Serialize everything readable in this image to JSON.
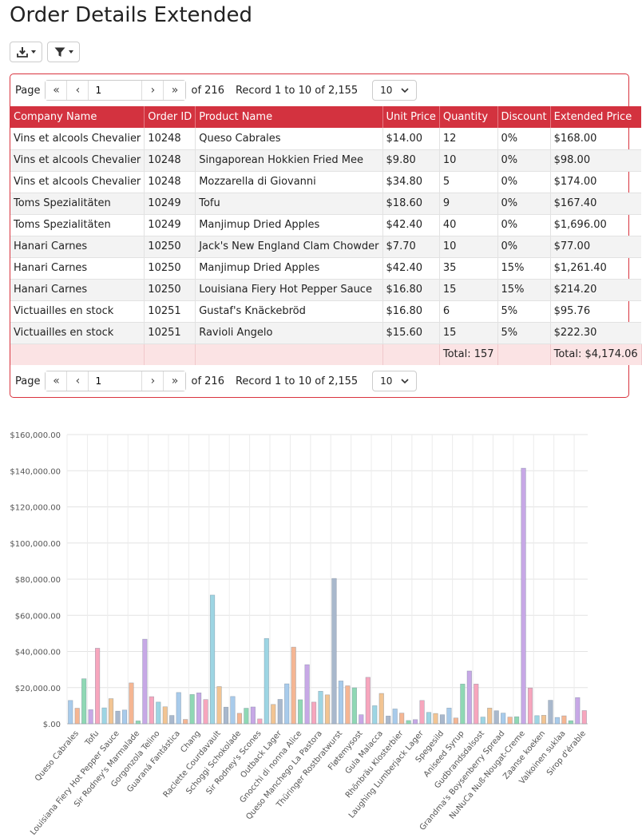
{
  "page": {
    "title": "Order Details Extended"
  },
  "toolbar": {
    "export_icon": "download-icon",
    "filter_icon": "filter-icon"
  },
  "pager": {
    "page_label": "Page",
    "current_page": "1",
    "of_text": "of 216",
    "record_text": "Record 1 to 10 of 2,155",
    "page_size": "10"
  },
  "table": {
    "columns": [
      "Company Name",
      "Order ID",
      "Product Name",
      "Unit Price",
      "Quantity",
      "Discount",
      "Extended Price"
    ],
    "rows": [
      [
        "Vins et alcools Chevalier",
        "10248",
        "Queso Cabrales",
        "$14.00",
        "12",
        "0%",
        "$168.00"
      ],
      [
        "Vins et alcools Chevalier",
        "10248",
        "Singaporean Hokkien Fried Mee",
        "$9.80",
        "10",
        "0%",
        "$98.00"
      ],
      [
        "Vins et alcools Chevalier",
        "10248",
        "Mozzarella di Giovanni",
        "$34.80",
        "5",
        "0%",
        "$174.00"
      ],
      [
        "Toms Spezialitäten",
        "10249",
        "Tofu",
        "$18.60",
        "9",
        "0%",
        "$167.40"
      ],
      [
        "Toms Spezialitäten",
        "10249",
        "Manjimup Dried Apples",
        "$42.40",
        "40",
        "0%",
        "$1,696.00"
      ],
      [
        "Hanari Carnes",
        "10250",
        "Jack's New England Clam Chowder",
        "$7.70",
        "10",
        "0%",
        "$77.00"
      ],
      [
        "Hanari Carnes",
        "10250",
        "Manjimup Dried Apples",
        "$42.40",
        "35",
        "15%",
        "$1,261.40"
      ],
      [
        "Hanari Carnes",
        "10250",
        "Louisiana Fiery Hot Pepper Sauce",
        "$16.80",
        "15",
        "15%",
        "$214.20"
      ],
      [
        "Victuailles en stock",
        "10251",
        "Gustaf's Knäckebröd",
        "$16.80",
        "6",
        "5%",
        "$95.76"
      ],
      [
        "Victuailles en stock",
        "10251",
        "Ravioli Angelo",
        "$15.60",
        "15",
        "5%",
        "$222.30"
      ]
    ],
    "totals": [
      "",
      "",
      "",
      "",
      "Total: 157",
      "",
      "Total: $4,174.06"
    ]
  },
  "chart_data": {
    "type": "bar",
    "ylim": [
      0,
      160000
    ],
    "yticks": [
      "$.00",
      "$20,000.00",
      "$40,000.00",
      "$60,000.00",
      "$80,000.00",
      "$100,000.00",
      "$120,000.00",
      "$140,000.00",
      "$160,000.00"
    ],
    "grid": true,
    "tick_labels": [
      "Queso Cabrales",
      "Tofu",
      "Louisiana Fiery Hot Pepper Sauce",
      "Sir Rodney's Marmalade",
      "Gorgonzola Telino",
      "Guaraná Fantástica",
      "Chang",
      "Raclette Courdavault",
      "Schoggi Schokolade",
      "Sir Rodney's Scones",
      "Outback Lager",
      "Gnocchi di nonna Alice",
      "Queso Manchego La Pastora",
      "Thüringer Rostbratwurst",
      "Fløtemysost",
      "Gula Malacca",
      "Rhönbräu Klosterbier",
      "Laughing Lumberjack Lager",
      "Spegesild",
      "Aniseed Syrup",
      "Gudbrandsdalsost",
      "Grandma's Boysenberry Spread",
      "NuNuCa Nuß-Nougat-Creme",
      "Zaanse koeken",
      "Valkoinen suklaa",
      "Sirop d'érable"
    ],
    "values": [
      12900,
      8600,
      24900,
      7800,
      41800,
      8800,
      13900,
      7000,
      7600,
      22600,
      1600,
      46800,
      15000,
      12000,
      9400,
      4600,
      17300,
      2400,
      16200,
      17100,
      13400,
      71200,
      20600,
      9200,
      15100,
      5800,
      8600,
      9300,
      2700,
      47200,
      10700,
      13500,
      22100,
      42400,
      13300,
      32700,
      12000,
      18000,
      16000,
      80400,
      23700,
      21000,
      19900,
      5000,
      25700,
      10000,
      16800,
      4300,
      8200,
      5900,
      1800,
      2300,
      12900,
      6300,
      5700,
      5000,
      8700,
      3200,
      22000,
      29200,
      22000,
      3700,
      8700,
      7200,
      5900,
      3700,
      3900,
      141400,
      19800,
      4500,
      4700,
      13000,
      3500,
      4400,
      1700,
      14500,
      7300
    ],
    "colors": [
      "#a8cbeb",
      "#f5b693",
      "#8fd8b4",
      "#c7a8e6",
      "#f7a6bd",
      "#9dd5e3",
      "#f2c492",
      "#a9b8cc"
    ],
    "title": "",
    "xlabel": "",
    "ylabel": ""
  }
}
